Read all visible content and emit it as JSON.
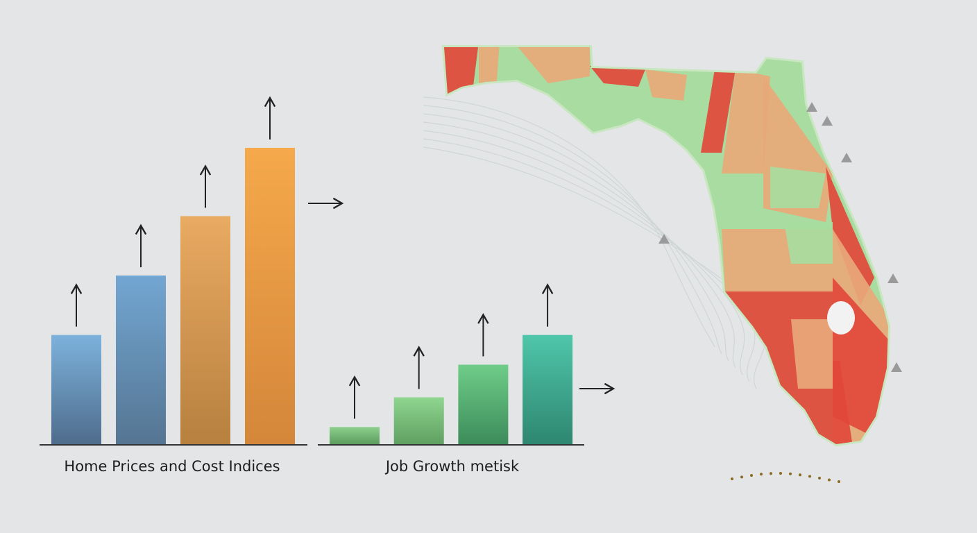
{
  "chart_data": [
    {
      "type": "bar",
      "title": "Home Prices and Cost Indices",
      "categories": [
        "",
        "",
        "",
        ""
      ],
      "values": [
        37,
        57,
        77,
        100
      ],
      "colors": [
        [
          "#7db2dc",
          "#4e6c8c"
        ],
        [
          "#72a6d2",
          "#557592"
        ],
        [
          "#e9aa62",
          "#b7803f"
        ],
        [
          "#f5a94b",
          "#d4863a"
        ]
      ],
      "trend": "up",
      "grid": false
    },
    {
      "type": "bar",
      "title": "Job Growth metisk",
      "categories": [
        "",
        "",
        "",
        ""
      ],
      "values": [
        6,
        16,
        27,
        37
      ],
      "colors": [
        [
          "#8ccf8c",
          "#5a9a5c"
        ],
        [
          "#8fd590",
          "#5f9f60"
        ],
        [
          "#6fcd88",
          "#3c8b5a"
        ],
        [
          "#4fc6aa",
          "#2e8670"
        ]
      ],
      "trend": "up",
      "grid": false
    }
  ],
  "map": {
    "region": "Florida",
    "colors": {
      "low": "#a8dca0",
      "mid": "#e8a878",
      "high": "#e2483a"
    },
    "icon": "warning-icon"
  }
}
